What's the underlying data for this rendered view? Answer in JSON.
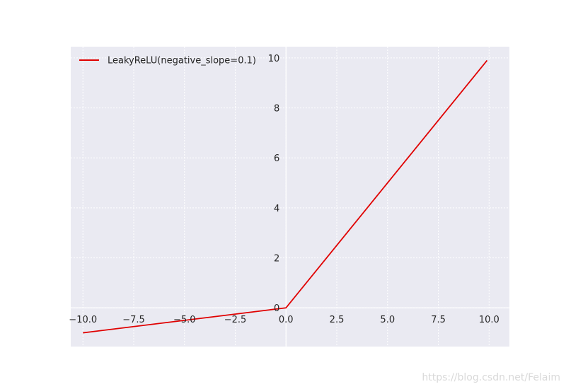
{
  "chart_data": {
    "type": "line",
    "series": [
      {
        "name": "LeakyReLU(negative_slope=0.1)",
        "color": "#e00000",
        "x": [
          -10,
          0,
          9.9
        ],
        "y": [
          -1,
          0,
          9.9
        ]
      }
    ],
    "xlim": [
      -10.6,
      11.0
    ],
    "ylim": [
      -1.55,
      10.45
    ],
    "xticks": [
      -10.0,
      -7.5,
      -5.0,
      -2.5,
      0.0,
      2.5,
      5.0,
      7.5,
      10.0
    ],
    "xtick_labels": [
      "−10.0",
      "−7.5",
      "−5.0",
      "−2.5",
      "0.0",
      "2.5",
      "5.0",
      "7.5",
      "10.0"
    ],
    "yticks": [
      0,
      2,
      4,
      6,
      8,
      10
    ],
    "ytick_labels": [
      "0",
      "2",
      "4",
      "6",
      "8",
      "10"
    ],
    "grid": true,
    "legend_position": "top-left",
    "axes_style": "centered-spines",
    "background": "#eaeaf2"
  },
  "watermark": "https://blog.csdn.net/Felaim"
}
